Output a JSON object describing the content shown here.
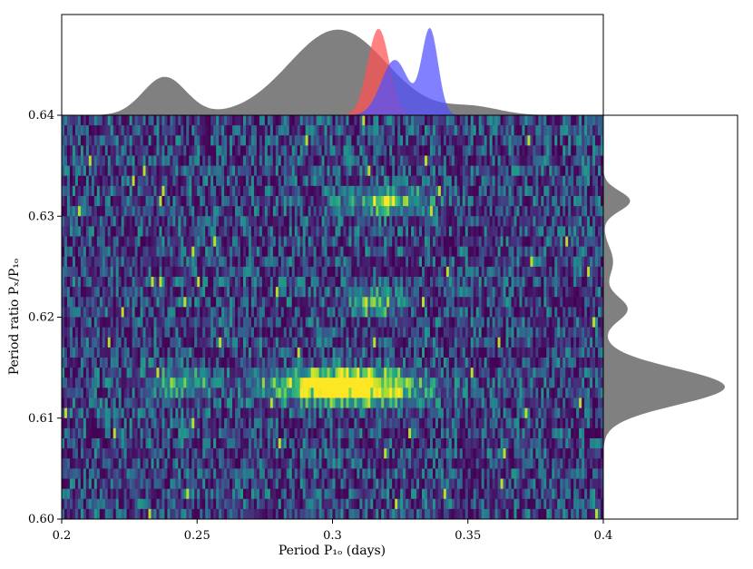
{
  "chart_data": {
    "type": "heatmap",
    "title": "",
    "xlabel": "Period P₁ₒ (days)",
    "ylabel": "Period ratio Pₓ/P₁ₒ",
    "xlim": [
      0.2,
      0.4
    ],
    "ylim": [
      0.6,
      0.64
    ],
    "xticks": [
      0.2,
      0.25,
      0.3,
      0.35,
      0.4
    ],
    "xtick_labels": [
      "0.2",
      "0.25",
      "0.3",
      "0.35",
      "0.4"
    ],
    "yticks": [
      0.6,
      0.61,
      0.62,
      0.63,
      0.64
    ],
    "ytick_labels": [
      "0.60",
      "0.61",
      "0.62",
      "0.63",
      "0.64"
    ],
    "colormap": "viridis",
    "hotspots": [
      {
        "x": 0.302,
        "y": 0.6136,
        "intensity": 1.0,
        "width": 0.018
      },
      {
        "x": 0.308,
        "y": 0.6125,
        "intensity": 0.85,
        "width": 0.016
      },
      {
        "x": 0.243,
        "y": 0.6135,
        "intensity": 0.55,
        "width": 0.008
      },
      {
        "x": 0.32,
        "y": 0.6315,
        "intensity": 0.7,
        "width": 0.01
      },
      {
        "x": 0.315,
        "y": 0.6215,
        "intensity": 0.6,
        "width": 0.006
      }
    ],
    "top_marginal": {
      "x_range": [
        0.2,
        0.4
      ],
      "series": [
        {
          "color": "#808080",
          "peaks": [
            {
              "x": 0.238,
              "h": 0.38,
              "w": 0.008
            },
            {
              "x": 0.302,
              "h": 0.85,
              "w": 0.018
            },
            {
              "x": 0.352,
              "h": 0.08,
              "w": 0.01
            }
          ]
        },
        {
          "color": "#ff5050",
          "peaks": [
            {
              "x": 0.317,
              "h": 0.86,
              "w": 0.004
            }
          ]
        },
        {
          "color": "#5050ff",
          "peaks": [
            {
              "x": 0.323,
              "h": 0.55,
              "w": 0.005
            },
            {
              "x": 0.336,
              "h": 0.85,
              "w": 0.003
            }
          ]
        }
      ]
    },
    "right_marginal": {
      "y_range": [
        0.6,
        0.64
      ],
      "series": [
        {
          "color": "#808080",
          "peaks": [
            {
              "y": 0.6131,
              "h": 1.0,
              "w": 0.0018
            },
            {
              "y": 0.6208,
              "h": 0.2,
              "w": 0.0012
            },
            {
              "y": 0.6315,
              "h": 0.22,
              "w": 0.001
            },
            {
              "y": 0.6255,
              "h": 0.08,
              "w": 0.0015
            }
          ]
        }
      ]
    }
  }
}
